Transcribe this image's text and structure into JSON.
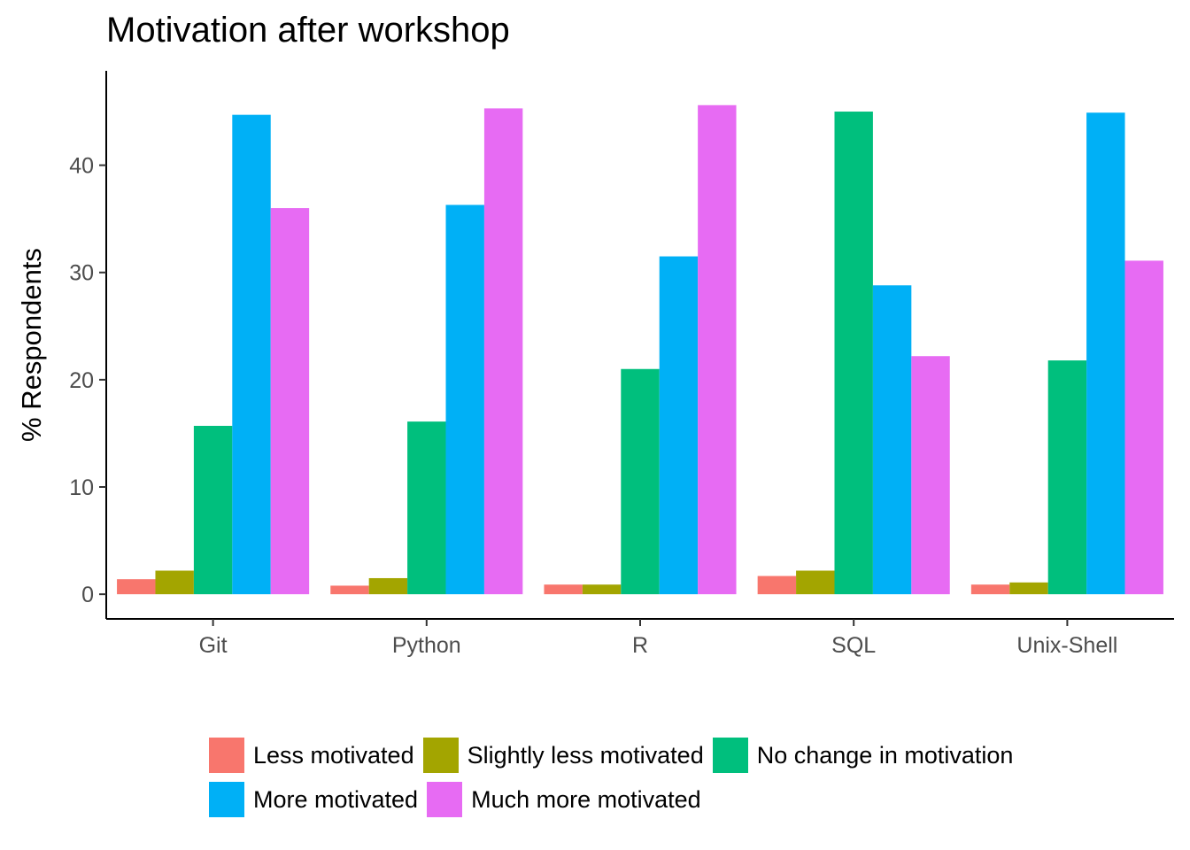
{
  "chart_data": {
    "type": "bar",
    "title": "Motivation after workshop",
    "xlabel": "",
    "ylabel": "% Respondents",
    "categories": [
      "Git",
      "Python",
      "R",
      "SQL",
      "Unix-Shell"
    ],
    "ylim": [
      -2.3,
      48.8
    ],
    "yticks": [
      0,
      10,
      20,
      30,
      40
    ],
    "grid": false,
    "legend_position": "bottom",
    "series": [
      {
        "name": "Less motivated",
        "color": "#F8766D",
        "values": [
          1.4,
          0.8,
          0.9,
          1.7,
          0.9
        ]
      },
      {
        "name": "Slightly less motivated",
        "color": "#A3A500",
        "values": [
          2.2,
          1.5,
          0.9,
          2.2,
          1.1
        ]
      },
      {
        "name": "No change in motivation",
        "color": "#00BF7D",
        "values": [
          15.7,
          16.1,
          21.0,
          45.0,
          21.8
        ]
      },
      {
        "name": "More motivated",
        "color": "#00B0F6",
        "values": [
          44.7,
          36.3,
          31.5,
          28.8,
          44.9
        ]
      },
      {
        "name": "Much more motivated",
        "color": "#E76BF3",
        "values": [
          36.0,
          45.3,
          45.6,
          22.2,
          31.1
        ]
      }
    ]
  },
  "legend": {
    "rows": [
      [
        {
          "label": "Less motivated",
          "color": "#F8766D"
        },
        {
          "label": "Slightly less motivated",
          "color": "#A3A500"
        },
        {
          "label": "No change in motivation",
          "color": "#00BF7D"
        }
      ],
      [
        {
          "label": "More motivated",
          "color": "#00B0F6"
        },
        {
          "label": "Much more motivated",
          "color": "#E76BF3"
        }
      ]
    ]
  }
}
